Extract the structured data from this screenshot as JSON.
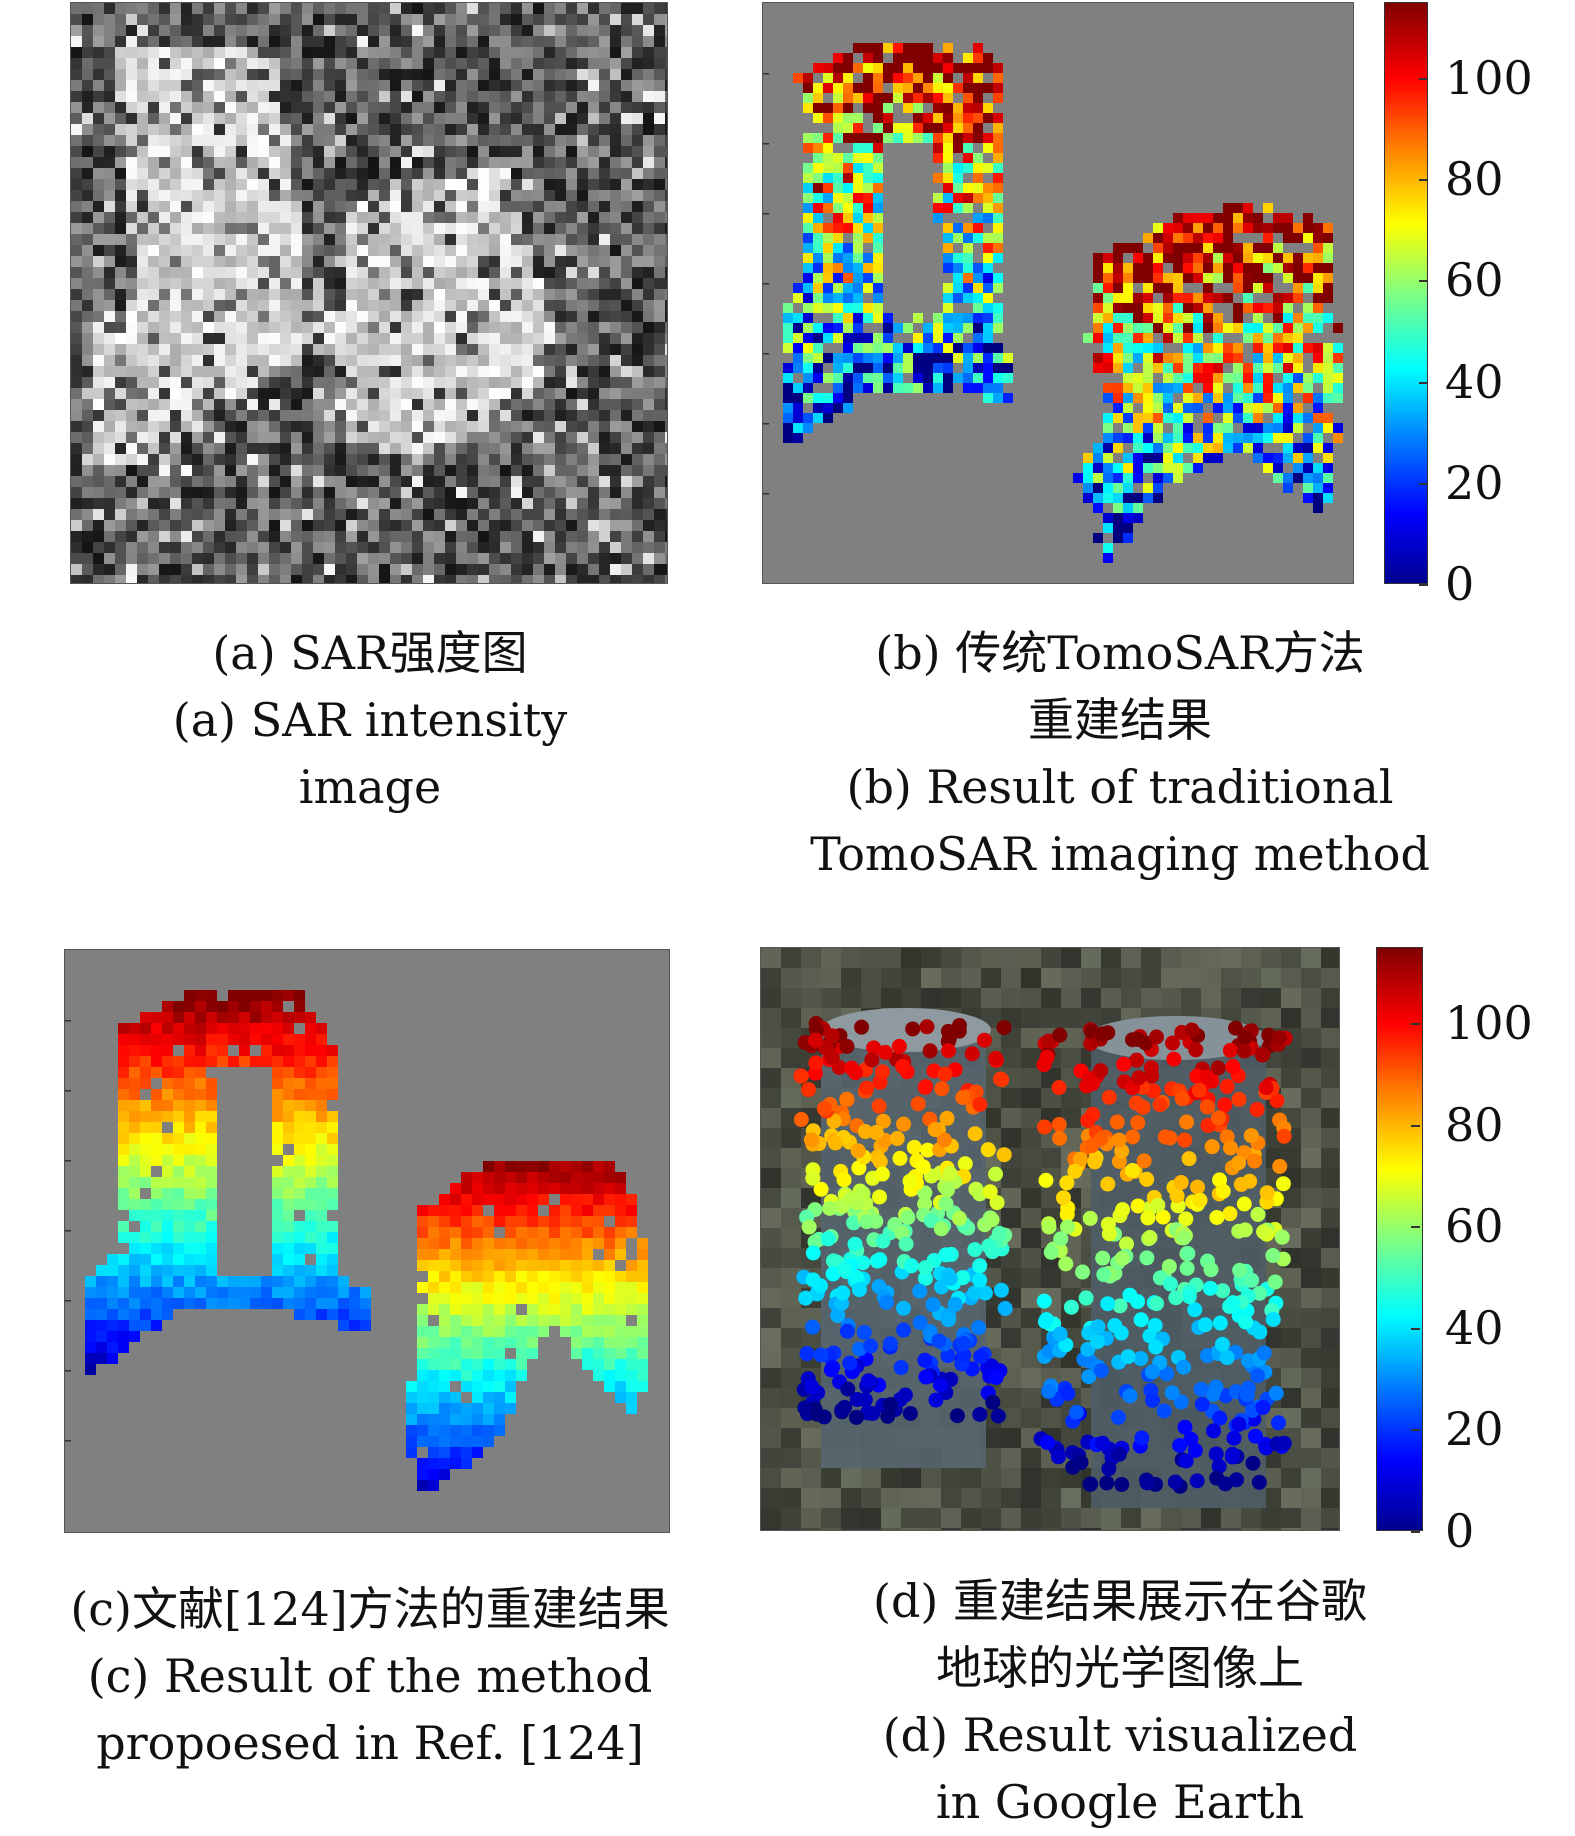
{
  "panels": {
    "a": {
      "caption_cn": "(a) SAR强度图",
      "caption_en_1": "(a) SAR intensity",
      "caption_en_2": "image"
    },
    "b": {
      "caption_cn_1": "(b) 传统TomoSAR方法",
      "caption_cn_2": "重建结果",
      "caption_en_1": "(b) Result of traditional",
      "caption_en_2": "TomoSAR imaging method"
    },
    "c": {
      "caption_cn": "(c)文献[124]方法的重建结果",
      "caption_en_1": "(c) Result of the method",
      "caption_en_2": "propoesed in Ref. [124]"
    },
    "d": {
      "caption_cn_1": "(d) 重建结果展示在谷歌",
      "caption_cn_2": "地球的光学图像上",
      "caption_en_1": "(d) Result visualized",
      "caption_en_2": "in Google Earth"
    }
  },
  "colorbar": {
    "ticks": [
      "0",
      "20",
      "40",
      "60",
      "80",
      "100"
    ],
    "tick_values": [
      0,
      20,
      40,
      60,
      80,
      100
    ],
    "range": [
      0,
      115
    ],
    "colormap": "jet"
  },
  "colors": {
    "background_gray": "#808080"
  }
}
